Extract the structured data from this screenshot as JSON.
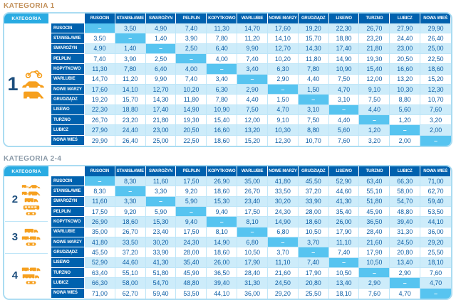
{
  "colors": {
    "title1": "#c2905a",
    "title2": "#8b9aa8",
    "frame": "#aadcf2",
    "corner_blue": "#29abe2",
    "header_blue": "#0061ae",
    "row_light": "#cdecfa",
    "diagonal_blue": "#57c4f0",
    "grid_line": "#bfe6f8",
    "value_text": "#0e5fa6",
    "icon_orange": "#f6a01f",
    "category_number": "#1c4e7d"
  },
  "chart_data": [
    {
      "type": "table",
      "title": "KATEGORIA 1",
      "corner_label": "KATEGORIA",
      "stations": [
        "RUSOCIN",
        "STANISŁAWIE",
        "SWAROŻYN",
        "PELPLIN",
        "KOPYTKOWO",
        "WARLUBIE",
        "NOWE MARZY",
        "GRUDZIĄDZ",
        "LISEWO",
        "TURZNO",
        "LUBICZ",
        "NOWA WIEŚ"
      ],
      "categories": [
        {
          "number": "1",
          "flex": 1,
          "icons": [
            "motorcycle-icon",
            "car-icon",
            "van-icon"
          ]
        }
      ],
      "matrix": [
        [
          "–",
          "3,50",
          "4,90",
          "7,40",
          "11,30",
          "14,70",
          "17,60",
          "19,20",
          "22,30",
          "26,70",
          "27,90",
          "29,90"
        ],
        [
          "3,50",
          "–",
          "1,40",
          "3,90",
          "7,80",
          "11,20",
          "14,10",
          "15,70",
          "18,80",
          "23,20",
          "24,40",
          "26,40"
        ],
        [
          "4,90",
          "1,40",
          "–",
          "2,50",
          "6,40",
          "9,90",
          "12,70",
          "14,30",
          "17,40",
          "21,80",
          "23,00",
          "25,00"
        ],
        [
          "7,40",
          "3,90",
          "2,50",
          "–",
          "4,00",
          "7,40",
          "10,20",
          "11,80",
          "14,90",
          "19,30",
          "20,50",
          "22,50"
        ],
        [
          "11,30",
          "7,80",
          "6,40",
          "4,00",
          "–",
          "3,40",
          "6,30",
          "7,80",
          "10,90",
          "15,40",
          "16,60",
          "18,60"
        ],
        [
          "14,70",
          "11,20",
          "9,90",
          "7,40",
          "3,40",
          "–",
          "2,90",
          "4,40",
          "7,50",
          "12,00",
          "13,20",
          "15,20"
        ],
        [
          "17,60",
          "14,10",
          "12,70",
          "10,20",
          "6,30",
          "2,90",
          "–",
          "1,50",
          "4,70",
          "9,10",
          "10,30",
          "12,30"
        ],
        [
          "19,20",
          "15,70",
          "14,30",
          "11,80",
          "7,80",
          "4,40",
          "1,50",
          "–",
          "3,10",
          "7,50",
          "8,80",
          "10,70"
        ],
        [
          "22,30",
          "18,80",
          "17,40",
          "14,90",
          "10,90",
          "7,50",
          "4,70",
          "3,10",
          "–",
          "4,40",
          "5,60",
          "7,60"
        ],
        [
          "26,70",
          "23,20",
          "21,80",
          "19,30",
          "15,40",
          "12,00",
          "9,10",
          "7,50",
          "4,40",
          "–",
          "1,20",
          "3,20"
        ],
        [
          "27,90",
          "24,40",
          "23,00",
          "20,50",
          "16,60",
          "13,20",
          "10,30",
          "8,80",
          "5,60",
          "1,20",
          "–",
          "2,00"
        ],
        [
          "29,90",
          "26,40",
          "25,00",
          "22,50",
          "18,60",
          "15,20",
          "12,30",
          "10,70",
          "7,60",
          "3,20",
          "2,00",
          "–"
        ]
      ]
    },
    {
      "type": "table",
      "title": "KATEGORIA 2-4",
      "corner_label": "KATEGORIA",
      "stations": [
        "RUSOCIN",
        "STANISŁAWIE",
        "SWAROŻYN",
        "PELPLIN",
        "KOPYTKOWO",
        "WARLUBIE",
        "NOWE MARZY",
        "GRUDZIĄDZ",
        "LISEWO",
        "TURZNO",
        "LUBICZ",
        "NOWA WIEŚ"
      ],
      "categories": [
        {
          "number": "2",
          "flex": 4.4,
          "icons": [
            "car-trailer-icon",
            "van-trailer-icon",
            "truck-icon",
            "bus-icon",
            "axles-icon"
          ]
        },
        {
          "number": "3",
          "flex": 3.1,
          "icons": [
            "truck-icon",
            "truck-trailer-icon",
            "axles-icon"
          ]
        },
        {
          "number": "4",
          "flex": 4.4,
          "icons": [
            "truck-trailer-icon",
            "semi-truck-icon",
            "axles-icon"
          ]
        }
      ],
      "matrix": [
        [
          "–",
          "8,30",
          "11,60",
          "17,50",
          "26,90",
          "35,00",
          "41,80",
          "45,50",
          "52,90",
          "63,40",
          "66,30",
          "71,00"
        ],
        [
          "8,30",
          "–",
          "3,30",
          "9,20",
          "18,60",
          "26,70",
          "33,50",
          "37,20",
          "44,60",
          "55,10",
          "58,00",
          "62,70"
        ],
        [
          "11,60",
          "3,30",
          "–",
          "5,90",
          "15,30",
          "23,40",
          "30,20",
          "33,90",
          "41,30",
          "51,80",
          "54,70",
          "59,40"
        ],
        [
          "17,50",
          "9,20",
          "5,90",
          "–",
          "9,40",
          "17,50",
          "24,30",
          "28,00",
          "35,40",
          "45,90",
          "48,80",
          "53,50"
        ],
        [
          "26,90",
          "18,60",
          "15,30",
          "9,40",
          "–",
          "8,10",
          "14,90",
          "18,60",
          "26,00",
          "36,50",
          "39,40",
          "44,10"
        ],
        [
          "35,00",
          "26,70",
          "23,40",
          "17,50",
          "8,10",
          "–",
          "6,80",
          "10,50",
          "17,90",
          "28,40",
          "31,30",
          "36,00"
        ],
        [
          "41,80",
          "33,50",
          "30,20",
          "24,30",
          "14,90",
          "6,80",
          "–",
          "3,70",
          "11,10",
          "21,60",
          "24,50",
          "29,20"
        ],
        [
          "45,50",
          "37,20",
          "33,90",
          "28,00",
          "18,60",
          "10,50",
          "3,70",
          "–",
          "7,40",
          "17,90",
          "20,80",
          "25,50"
        ],
        [
          "52,90",
          "44,60",
          "41,30",
          "35,40",
          "26,00",
          "17,90",
          "11,10",
          "7,40",
          "–",
          "10,50",
          "13,40",
          "18,10"
        ],
        [
          "63,40",
          "55,10",
          "51,80",
          "45,90",
          "36,50",
          "28,40",
          "21,60",
          "17,90",
          "10,50",
          "–",
          "2,90",
          "7,60"
        ],
        [
          "66,30",
          "58,00",
          "54,70",
          "48,80",
          "39,40",
          "31,30",
          "24,50",
          "20,80",
          "13,40",
          "2,90",
          "–",
          "4,70"
        ],
        [
          "71,00",
          "62,70",
          "59,40",
          "53,50",
          "44,10",
          "36,00",
          "29,20",
          "25,50",
          "18,10",
          "7,60",
          "4,70",
          "–"
        ]
      ]
    }
  ]
}
